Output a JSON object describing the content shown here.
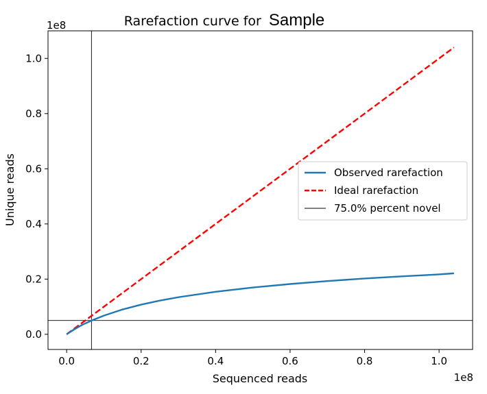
{
  "chart_data": {
    "type": "line",
    "title_prefix": "Rarefaction curve for",
    "title_sample": "Sample",
    "xlabel": "Sequenced reads",
    "ylabel": "Unique reads",
    "x_offset_label": "1e8",
    "y_offset_label": "1e8",
    "xlim": [
      -0.05,
      1.09
    ],
    "ylim": [
      -0.055,
      1.1
    ],
    "xticks": [
      "0.0",
      "0.2",
      "0.4",
      "0.6",
      "0.8",
      "1.0"
    ],
    "yticks": [
      "0.0",
      "0.2",
      "0.4",
      "0.6",
      "0.8",
      "1.0"
    ],
    "series": [
      {
        "name": "Observed rarefaction",
        "color": "#1f77b4",
        "style": "solid",
        "x": [
          0.0,
          0.02,
          0.04,
          0.0667,
          0.1,
          0.15,
          0.2,
          0.25,
          0.3,
          0.4,
          0.5,
          0.6,
          0.7,
          0.8,
          0.9,
          1.0,
          1.04
        ],
        "y": [
          0.0,
          0.0175,
          0.033,
          0.0497,
          0.0676,
          0.0899,
          0.1076,
          0.1221,
          0.1344,
          0.1541,
          0.1696,
          0.1822,
          0.193,
          0.2021,
          0.2101,
          0.2171,
          0.221
        ]
      },
      {
        "name": "Ideal rarefaction",
        "color": "#ff0000",
        "style": "dashed",
        "x": [
          0.0,
          1.04
        ],
        "y": [
          0.0,
          1.04
        ]
      }
    ],
    "reference_lines": {
      "name": "75.0% percent novel",
      "color": "#000000",
      "vertical_x": 0.0667,
      "horizontal_y": 0.05
    },
    "legend_position": "center-right",
    "grid": false
  }
}
